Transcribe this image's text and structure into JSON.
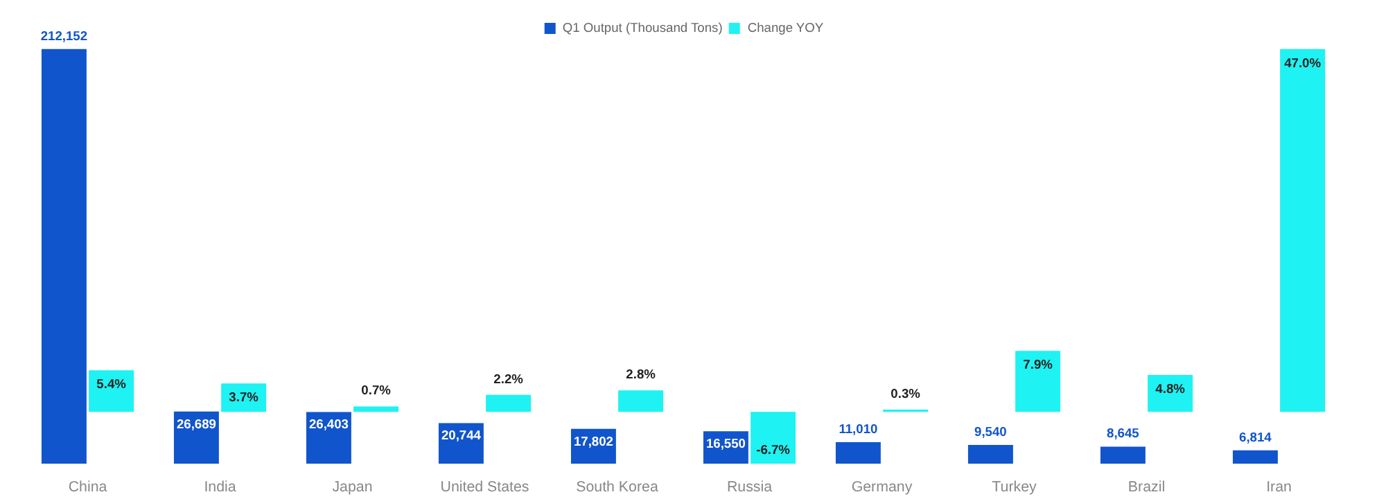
{
  "chart_data": {
    "type": "bar",
    "categories": [
      "China",
      "India",
      "Japan",
      "United States",
      "South Korea",
      "Russia",
      "Germany",
      "Turkey",
      "Brazil",
      "Iran"
    ],
    "series": [
      {
        "name": "Q1 Output (Thousand Tons)",
        "color": "#1155cc",
        "values": [
          212152,
          26689,
          26403,
          20744,
          17802,
          16550,
          11010,
          9540,
          8645,
          6814
        ],
        "value_labels": [
          "212,152",
          "26,689",
          "26,403",
          "20,744",
          "17,802",
          "16,550",
          "11,010",
          "9,540",
          "8,645",
          "6,814"
        ]
      },
      {
        "name": "Change YOY",
        "color": "#1ff2f2",
        "axis": "y2",
        "values": [
          5.4,
          3.7,
          0.7,
          2.2,
          2.8,
          -6.7,
          0.3,
          7.9,
          4.8,
          47.0
        ],
        "value_labels": [
          "5.4%",
          "3.7%",
          "0.7%",
          "2.2%",
          "2.8%",
          "-6.7%",
          "0.3%",
          "7.9%",
          "4.8%",
          "47.0%"
        ]
      }
    ],
    "tick_labels": "x",
    "grid": false,
    "legend": "top"
  }
}
